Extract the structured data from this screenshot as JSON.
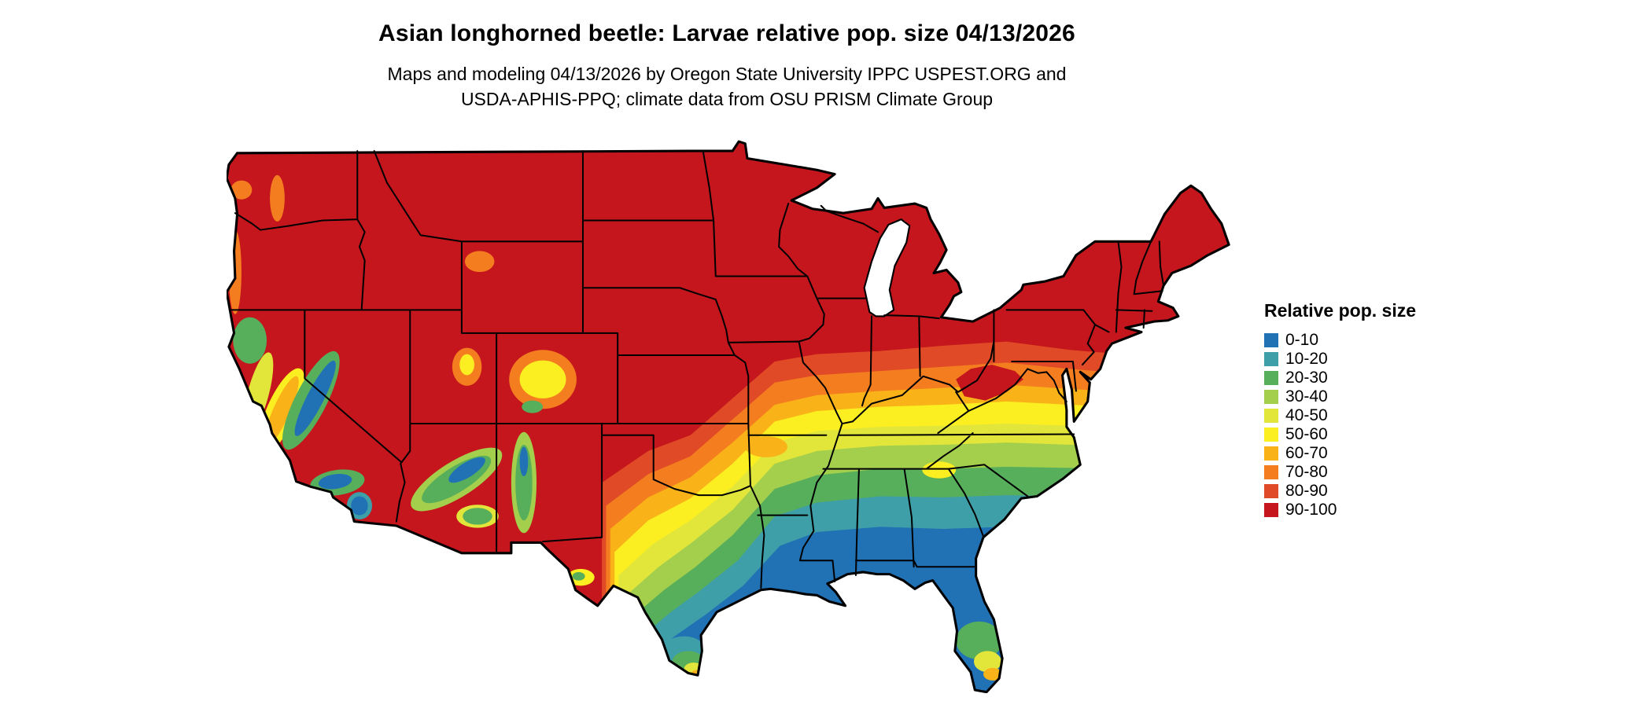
{
  "header": {
    "title": "Asian longhorned beetle: Larvae relative pop. size 04/13/2026",
    "subtitle_line1": "Maps and modeling 04/13/2026 by Oregon State University IPPC USPEST.ORG and",
    "subtitle_line2": "USDA-APHIS-PPQ; climate data from OSU PRISM Climate Group"
  },
  "legend": {
    "title": "Relative pop. size",
    "entries": [
      {
        "label": "0-10",
        "color": "#2171B5"
      },
      {
        "label": "10-20",
        "color": "#3F9FA8"
      },
      {
        "label": "20-30",
        "color": "#57AE5B"
      },
      {
        "label": "30-40",
        "color": "#A3CF4C"
      },
      {
        "label": "40-50",
        "color": "#E2E63B"
      },
      {
        "label": "50-60",
        "color": "#FBEE21"
      },
      {
        "label": "60-70",
        "color": "#F9B218"
      },
      {
        "label": "70-80",
        "color": "#F47D20"
      },
      {
        "label": "80-90",
        "color": "#E04A26"
      },
      {
        "label": "90-100",
        "color": "#C4161C"
      }
    ]
  }
}
